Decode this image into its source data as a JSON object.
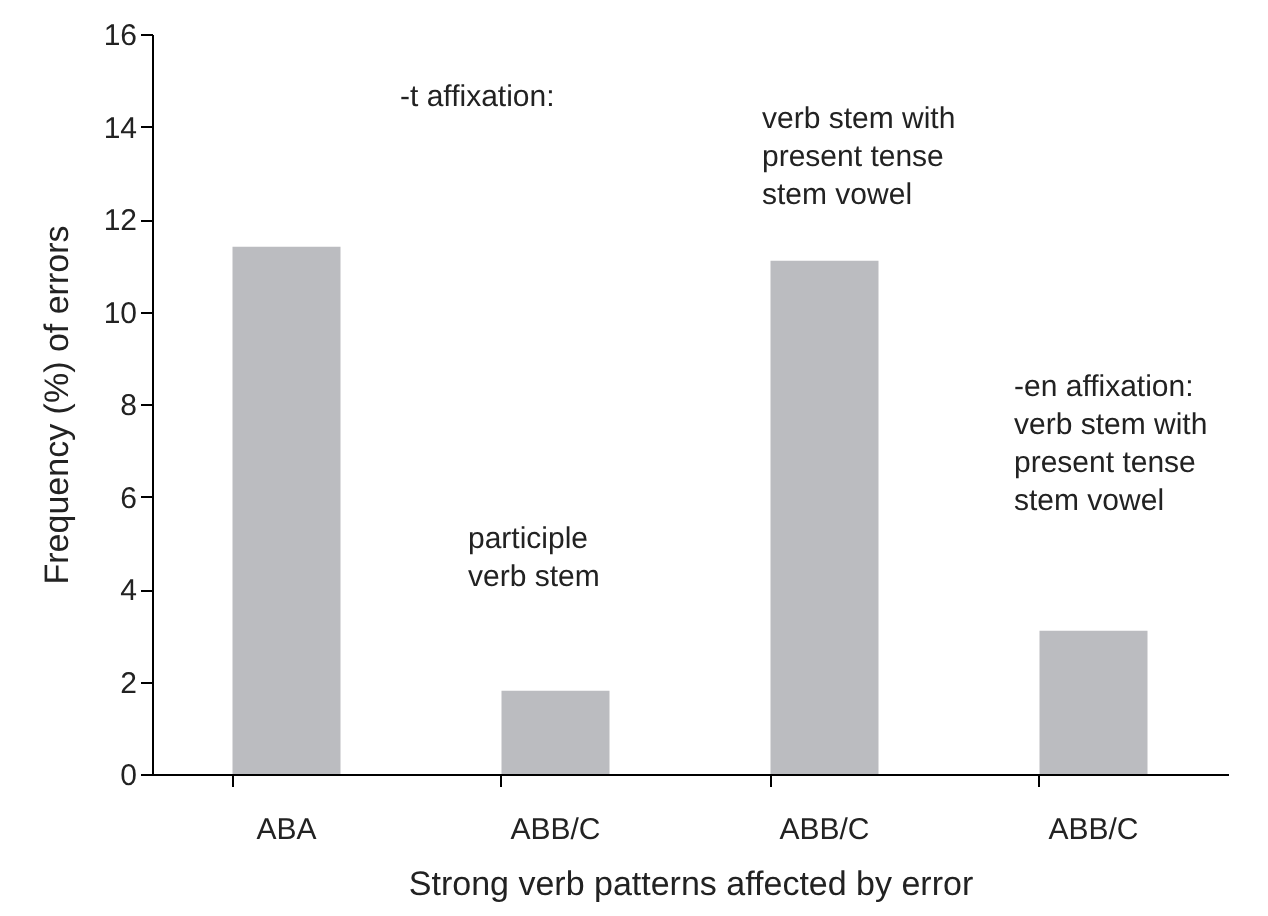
{
  "chart_data": {
    "type": "bar",
    "categories": [
      "ABA",
      "ABB/C",
      "ABB/C",
      "ABB/C"
    ],
    "values": [
      11.4,
      1.8,
      11.1,
      3.1
    ],
    "color": "#bbbcc0",
    "xlabel": "Strong verb patterns affected by error",
    "ylabel": "Frequency (%) of errors",
    "ylim": [
      0,
      16
    ],
    "yticks": [
      0,
      2,
      4,
      6,
      8,
      10,
      12,
      14,
      16
    ],
    "grid": false,
    "annotations": [
      "-t affixation:",
      "participle\nverb stem",
      "verb stem with\npresent tense\nstem vowel",
      "-en affixation:\nverb stem with\npresent tense\nstem vowel"
    ]
  }
}
